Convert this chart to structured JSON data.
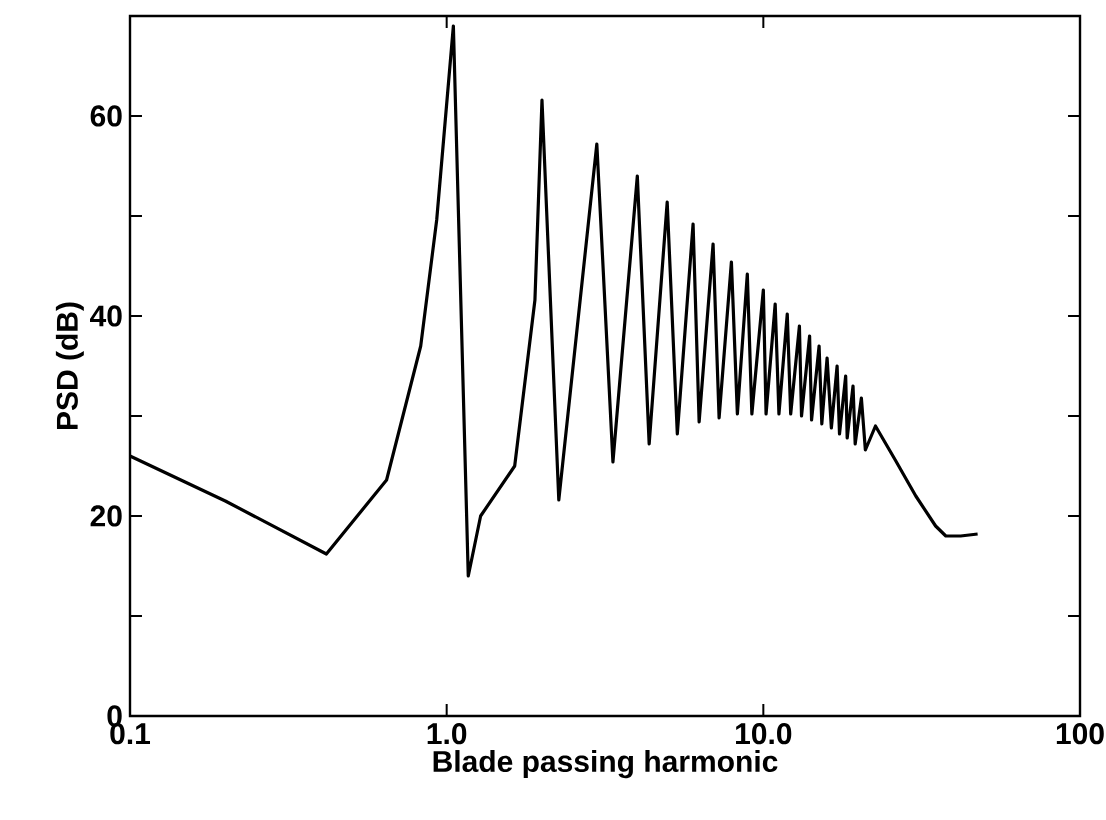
{
  "chart_data": {
    "type": "line",
    "xlabel": "Blade passing harmonic",
    "ylabel": "PSD (dB)",
    "log": "x",
    "xlim": [
      0.1,
      100
    ],
    "ylim": [
      0,
      70
    ],
    "xticks": [
      0.1,
      {
        "value": 1,
        "label": "1.0"
      },
      {
        "value": 10,
        "label": "10.0"
      },
      100
    ],
    "yticks": [
      0,
      {
        "value": 10,
        "label": null
      },
      20,
      {
        "value": 30,
        "label": null
      },
      40,
      {
        "value": 50,
        "label": null
      },
      60
    ],
    "line_style": "solid",
    "color": "#000000",
    "x": [
      0.1,
      0.2,
      0.417,
      0.646,
      0.828,
      0.93,
      1.05,
      1.17,
      1.28,
      1.64,
      1.9,
      2.0,
      2.26,
      2.98,
      3.35,
      4.0,
      4.36,
      4.97,
      5.35,
      6.0,
      6.27,
      6.94,
      7.25,
      7.93,
      8.28,
      8.9,
      9.2,
      10.0,
      10.2,
      10.9,
      11.2,
      11.9,
      12.2,
      13.0,
      13.2,
      14.0,
      14.2,
      15.0,
      15.3,
      15.9,
      16.4,
      17.1,
      17.4,
      18.2,
      18.4,
      19.2,
      19.5,
      20.4,
      21.0,
      22.6,
      26.1,
      30.3,
      35.0,
      37.7,
      42.0,
      47.5
    ],
    "values": [
      26,
      21.5,
      16.2,
      23.6,
      37,
      49.6,
      69,
      14,
      20,
      25,
      41.6,
      61.6,
      21.6,
      57.2,
      25.4,
      54,
      27.2,
      51.4,
      28.2,
      49.2,
      29.4,
      47.2,
      29.8,
      45.4,
      30.2,
      44.2,
      30.2,
      42.6,
      30.2,
      41.2,
      30.2,
      40.2,
      30.2,
      39,
      30,
      38,
      29.6,
      37,
      29.2,
      35.8,
      28.8,
      35,
      28.2,
      34,
      27.8,
      33,
      27.2,
      31.8,
      26.6,
      29,
      25.6,
      22,
      19,
      18,
      18,
      18.2
    ]
  }
}
